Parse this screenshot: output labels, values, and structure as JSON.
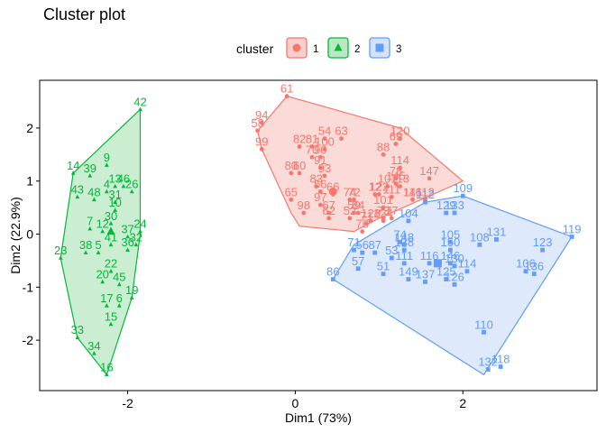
{
  "chart_data": {
    "type": "scatter",
    "title": "Cluster plot",
    "xlabel": "Dim1 (73%)",
    "ylabel": "Dim2 (22.9%)",
    "xlim": [
      -3.05,
      3.6
    ],
    "ylim": [
      -2.95,
      2.9
    ],
    "xticks": [
      -2,
      0,
      2
    ],
    "yticks": [
      -2,
      -1,
      0,
      1,
      2
    ],
    "grid": false,
    "legend": {
      "title": "cluster",
      "position": "top"
    },
    "series": [
      {
        "name": "1",
        "color": "#F8766D",
        "fill": "#F8CFCB",
        "shape": "circle",
        "hull": [
          [
            -0.1,
            2.6
          ],
          [
            1.25,
            2.0
          ],
          [
            2.0,
            1.0
          ],
          [
            1.0,
            0.3
          ],
          [
            0.7,
            0.05
          ],
          [
            0.05,
            0.15
          ],
          [
            -0.05,
            0.4
          ],
          [
            -0.4,
            1.6
          ],
          [
            -0.45,
            1.95
          ]
        ],
        "points": [
          {
            "label": "61",
            "x": -0.1,
            "y": 2.6
          },
          {
            "label": "94",
            "x": -0.4,
            "y": 2.1
          },
          {
            "label": "58",
            "x": -0.45,
            "y": 1.95
          },
          {
            "label": "99",
            "x": -0.4,
            "y": 1.6
          },
          {
            "label": "54",
            "x": 0.35,
            "y": 1.8
          },
          {
            "label": "63",
            "x": 0.55,
            "y": 1.8
          },
          {
            "label": "120",
            "x": 1.25,
            "y": 1.8
          },
          {
            "label": "69",
            "x": 1.2,
            "y": 1.7
          },
          {
            "label": "82",
            "x": 0.05,
            "y": 1.65
          },
          {
            "label": "81",
            "x": 0.2,
            "y": 1.65
          },
          {
            "label": "100",
            "x": 0.35,
            "y": 1.6
          },
          {
            "label": "88",
            "x": 1.05,
            "y": 1.5
          },
          {
            "label": "70",
            "x": 0.2,
            "y": 1.45
          },
          {
            "label": "90",
            "x": 0.3,
            "y": 1.45
          },
          {
            "label": "91",
            "x": 0.3,
            "y": 1.25
          },
          {
            "label": "114",
            "x": 1.25,
            "y": 1.25
          },
          {
            "label": "80",
            "x": -0.05,
            "y": 1.15
          },
          {
            "label": "60",
            "x": 0.05,
            "y": 1.15
          },
          {
            "label": "93",
            "x": 0.35,
            "y": 1.1
          },
          {
            "label": "78",
            "x": 1.2,
            "y": 1.05
          },
          {
            "label": "147",
            "x": 1.6,
            "y": 1.05
          },
          {
            "label": "145",
            "x": 1.2,
            "y": 0.95
          },
          {
            "label": "83",
            "x": 0.25,
            "y": 0.9
          },
          {
            "label": "107",
            "x": 1.1,
            "y": 0.9
          },
          {
            "label": "113",
            "x": 1.25,
            "y": 0.9
          },
          {
            "label": "56",
            "x": 0.3,
            "y": 0.8
          },
          {
            "label": "66",
            "x": 0.45,
            "y": 0.75
          },
          {
            "label": "74",
            "x": 0.65,
            "y": 0.65
          },
          {
            "label": "122",
            "x": 1.0,
            "y": 0.75
          },
          {
            "label": "65",
            "x": -0.05,
            "y": 0.65
          },
          {
            "label": "72",
            "x": 0.7,
            "y": 0.65
          },
          {
            "label": "12",
            "x": 0.95,
            "y": 0.75
          },
          {
            "label": "111",
            "x": 1.15,
            "y": 0.7
          },
          {
            "label": "116",
            "x": 1.4,
            "y": 0.65
          },
          {
            "label": "141",
            "x": 1.4,
            "y": 0.65
          },
          {
            "label": "112",
            "x": 1.55,
            "y": 0.65
          },
          {
            "label": "97",
            "x": 0.3,
            "y": 0.55
          },
          {
            "label": "98",
            "x": 0.1,
            "y": 0.4
          },
          {
            "label": "67",
            "x": 0.4,
            "y": 0.4
          },
          {
            "label": "59",
            "x": 0.7,
            "y": 0.4
          },
          {
            "label": "84",
            "x": 0.75,
            "y": 0.4
          },
          {
            "label": "101",
            "x": 1.05,
            "y": 0.5
          },
          {
            "label": "62",
            "x": 0.4,
            "y": 0.3
          },
          {
            "label": "52",
            "x": 0.65,
            "y": 0.3
          },
          {
            "label": "71",
            "x": 0.85,
            "y": 0.2
          },
          {
            "label": "128",
            "x": 0.9,
            "y": 0.25
          },
          {
            "label": "124",
            "x": 1.05,
            "y": 0.25
          },
          {
            "label": "73",
            "x": 1.05,
            "y": 0.3
          },
          {
            "label": "77",
            "x": 1.15,
            "y": 0.3
          },
          {
            "label": "76",
            "x": 0.8,
            "y": 0.05
          }
        ]
      },
      {
        "name": "2",
        "color": "#00BA38",
        "fill": "#B9E8C3",
        "shape": "triangle",
        "hull": [
          [
            -1.85,
            2.35
          ],
          [
            -1.85,
            0.0
          ],
          [
            -1.95,
            -1.2
          ],
          [
            -2.25,
            -2.65
          ],
          [
            -2.6,
            -1.95
          ],
          [
            -2.8,
            -0.45
          ],
          [
            -2.65,
            1.15
          ]
        ],
        "points": [
          {
            "label": "42",
            "x": -1.85,
            "y": 2.35
          },
          {
            "label": "9",
            "x": -2.25,
            "y": 1.3
          },
          {
            "label": "14",
            "x": -2.65,
            "y": 1.15
          },
          {
            "label": "39",
            "x": -2.45,
            "y": 1.1
          },
          {
            "label": "13",
            "x": -2.15,
            "y": 0.9
          },
          {
            "label": "46",
            "x": -2.05,
            "y": 0.9
          },
          {
            "label": "4",
            "x": -2.25,
            "y": 0.8
          },
          {
            "label": "26",
            "x": -1.95,
            "y": 0.8
          },
          {
            "label": "43",
            "x": -2.6,
            "y": 0.7
          },
          {
            "label": "48",
            "x": -2.4,
            "y": 0.65
          },
          {
            "label": "31",
            "x": -2.15,
            "y": 0.6
          },
          {
            "label": "10",
            "x": -2.15,
            "y": 0.45
          },
          {
            "label": "30",
            "x": -2.2,
            "y": 0.2
          },
          {
            "label": "7",
            "x": -2.45,
            "y": 0.1
          },
          {
            "label": "12",
            "x": -2.3,
            "y": 0.05
          },
          {
            "label": "24",
            "x": -1.85,
            "y": 0.05
          },
          {
            "label": "37",
            "x": -2.0,
            "y": -0.05
          },
          {
            "label": "23",
            "x": -2.8,
            "y": -0.45
          },
          {
            "label": "41",
            "x": -2.2,
            "y": -0.2
          },
          {
            "label": "32",
            "x": -1.9,
            "y": -0.2
          },
          {
            "label": "36",
            "x": -2.0,
            "y": -0.3
          },
          {
            "label": "38",
            "x": -2.5,
            "y": -0.35
          },
          {
            "label": "5",
            "x": -2.35,
            "y": -0.35
          },
          {
            "label": "22",
            "x": -2.2,
            "y": -0.7
          },
          {
            "label": "20",
            "x": -2.3,
            "y": -0.9
          },
          {
            "label": "45",
            "x": -2.1,
            "y": -0.95
          },
          {
            "label": "19",
            "x": -1.95,
            "y": -1.2
          },
          {
            "label": "17",
            "x": -2.25,
            "y": -1.35
          },
          {
            "label": "6",
            "x": -2.1,
            "y": -1.35
          },
          {
            "label": "33",
            "x": -2.6,
            "y": -1.95
          },
          {
            "label": "15",
            "x": -2.2,
            "y": -1.7
          },
          {
            "label": "34",
            "x": -2.4,
            "y": -2.25
          },
          {
            "label": "16",
            "x": -2.25,
            "y": -2.65
          }
        ]
      },
      {
        "name": "3",
        "color": "#619CFF",
        "fill": "#D4E2FB",
        "shape": "square",
        "hull": [
          [
            2.0,
            0.72
          ],
          [
            3.3,
            -0.05
          ],
          [
            2.25,
            -2.65
          ],
          [
            0.45,
            -0.85
          ],
          [
            0.7,
            -0.2
          ],
          [
            1.55,
            0.6
          ]
        ],
        "points": [
          {
            "label": "109",
            "x": 2.0,
            "y": 0.72
          },
          {
            "label": "119",
            "x": 3.3,
            "y": -0.05
          },
          {
            "label": "112",
            "x": 1.55,
            "y": 0.6
          },
          {
            "label": "129",
            "x": 1.8,
            "y": 0.4
          },
          {
            "label": "133",
            "x": 1.9,
            "y": 0.4
          },
          {
            "label": "104",
            "x": 1.35,
            "y": 0.25
          },
          {
            "label": "148",
            "x": 1.3,
            "y": -0.2
          },
          {
            "label": "74",
            "x": 1.25,
            "y": -0.15
          },
          {
            "label": "105",
            "x": 1.85,
            "y": -0.15
          },
          {
            "label": "131",
            "x": 2.4,
            "y": -0.1
          },
          {
            "label": "108",
            "x": 2.2,
            "y": -0.2
          },
          {
            "label": "123",
            "x": 2.95,
            "y": -0.3
          },
          {
            "label": "71",
            "x": 0.7,
            "y": -0.3
          },
          {
            "label": "56",
            "x": 0.8,
            "y": -0.35
          },
          {
            "label": "87",
            "x": 0.95,
            "y": -0.35
          },
          {
            "label": "138",
            "x": 1.3,
            "y": -0.3
          },
          {
            "label": "150",
            "x": 1.85,
            "y": -0.3
          },
          {
            "label": "53",
            "x": 1.15,
            "y": -0.45
          },
          {
            "label": "116",
            "x": 1.6,
            "y": -0.55
          },
          {
            "label": "111",
            "x": 1.3,
            "y": -0.55
          },
          {
            "label": "146",
            "x": 1.85,
            "y": -0.55
          },
          {
            "label": "130",
            "x": 1.9,
            "y": -0.6
          },
          {
            "label": "57",
            "x": 0.75,
            "y": -0.65
          },
          {
            "label": "51",
            "x": 1.05,
            "y": -0.75
          },
          {
            "label": "114",
            "x": 2.05,
            "y": -0.7
          },
          {
            "label": "149",
            "x": 1.35,
            "y": -0.85
          },
          {
            "label": "137",
            "x": 1.55,
            "y": -0.9
          },
          {
            "label": "125",
            "x": 1.8,
            "y": -0.85
          },
          {
            "label": "126",
            "x": 1.9,
            "y": -0.95
          },
          {
            "label": "86",
            "x": 0.45,
            "y": -0.85
          },
          {
            "label": "106",
            "x": 2.75,
            "y": -0.7
          },
          {
            "label": "136",
            "x": 2.85,
            "y": -0.75
          },
          {
            "label": "110",
            "x": 2.25,
            "y": -1.85
          },
          {
            "label": "132",
            "x": 2.3,
            "y": -2.55
          },
          {
            "label": "118",
            "x": 2.45,
            "y": -2.5
          }
        ]
      }
    ],
    "centroids": [
      {
        "cluster": "1",
        "x": 0.45,
        "y": 0.8
      },
      {
        "cluster": "2",
        "x": -2.2,
        "y": 0.05
      },
      {
        "cluster": "3",
        "x": 1.7,
        "y": -0.55
      }
    ]
  }
}
